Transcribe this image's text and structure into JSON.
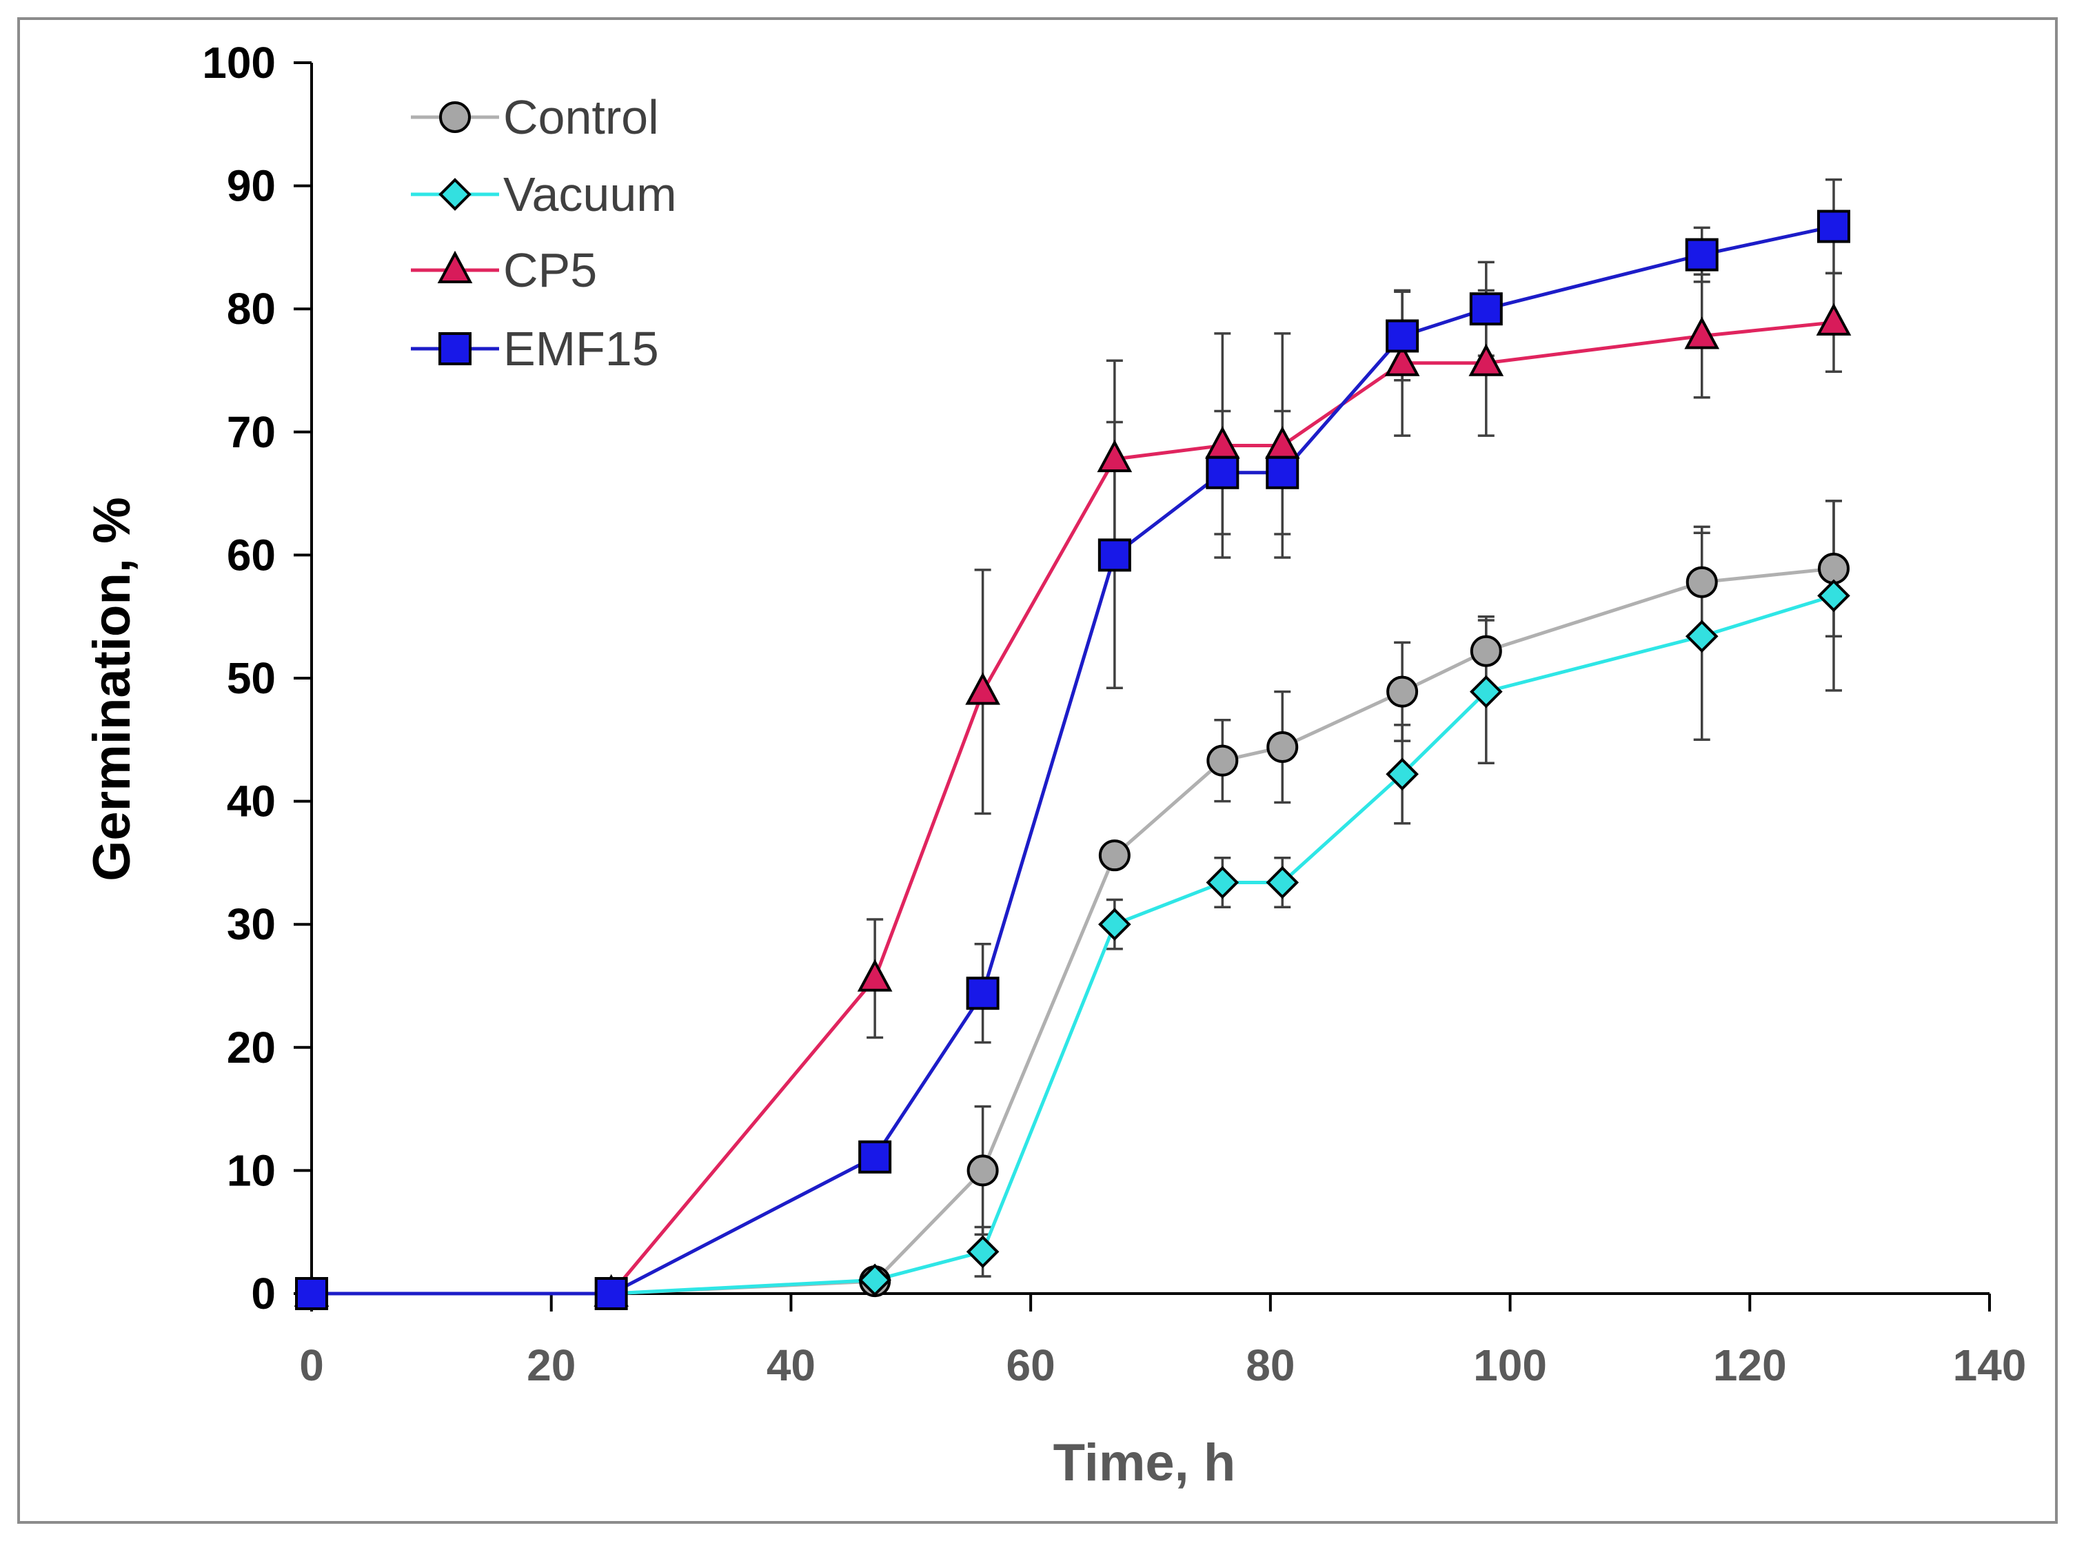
{
  "chart_data": {
    "type": "line",
    "title": "",
    "xlabel": "Time, h",
    "ylabel": "Germination, %",
    "xlim": [
      0,
      140
    ],
    "ylim": [
      0,
      100
    ],
    "xticks": [
      0,
      20,
      40,
      60,
      80,
      100,
      120,
      140
    ],
    "yticks": [
      0,
      10,
      20,
      30,
      40,
      50,
      60,
      70,
      80,
      90,
      100
    ],
    "grid": false,
    "legend_position": "top-left",
    "series": [
      {
        "name": "Control",
        "color": "#b0b0b0",
        "marker_fill": "#a6a6a6",
        "marker": "circle",
        "x": [
          0,
          25,
          47,
          56,
          67,
          76,
          81,
          91,
          98,
          116,
          127
        ],
        "values": [
          0,
          0,
          1,
          10,
          35.6,
          43.3,
          44.4,
          48.9,
          52.2,
          57.8,
          58.9
        ],
        "errors": [
          0,
          0,
          0.5,
          5.2,
          0,
          3.3,
          4.5,
          4,
          2.8,
          4.5,
          5.5
        ]
      },
      {
        "name": "Vacuum",
        "color": "#2ee6e6",
        "marker_fill": "#33e0e0",
        "marker": "diamond",
        "x": [
          0,
          25,
          47,
          56,
          67,
          76,
          81,
          91,
          98,
          116,
          127
        ],
        "values": [
          0,
          0,
          1.1,
          3.4,
          30,
          33.4,
          33.4,
          42.2,
          48.9,
          53.4,
          56.7
        ],
        "errors": [
          0,
          0,
          0.3,
          2,
          2,
          2,
          2,
          4,
          5.8,
          8.4,
          7.7
        ]
      },
      {
        "name": "CP5",
        "color": "#e0245e",
        "marker_fill": "#d81b5a",
        "marker": "triangle",
        "x": [
          0,
          25,
          47,
          56,
          67,
          76,
          81,
          91,
          98,
          116,
          127
        ],
        "values": [
          0,
          0,
          25.6,
          48.9,
          67.8,
          68.9,
          68.9,
          75.6,
          75.6,
          77.8,
          78.9
        ],
        "errors": [
          0,
          0,
          4.8,
          9.9,
          8,
          9.1,
          9.1,
          5.9,
          5.9,
          5,
          4
        ]
      },
      {
        "name": "EMF15",
        "color": "#1c1cc8",
        "marker_fill": "#1818e8",
        "marker": "square",
        "x": [
          0,
          25,
          47,
          56,
          67,
          76,
          81,
          91,
          98,
          116,
          127
        ],
        "values": [
          0,
          0,
          11.1,
          24.4,
          60,
          66.7,
          66.7,
          77.8,
          80,
          84.4,
          86.7
        ],
        "errors": [
          0,
          0,
          0,
          4,
          10.8,
          5,
          5,
          3.6,
          3.8,
          2.2,
          3.8
        ]
      }
    ]
  }
}
